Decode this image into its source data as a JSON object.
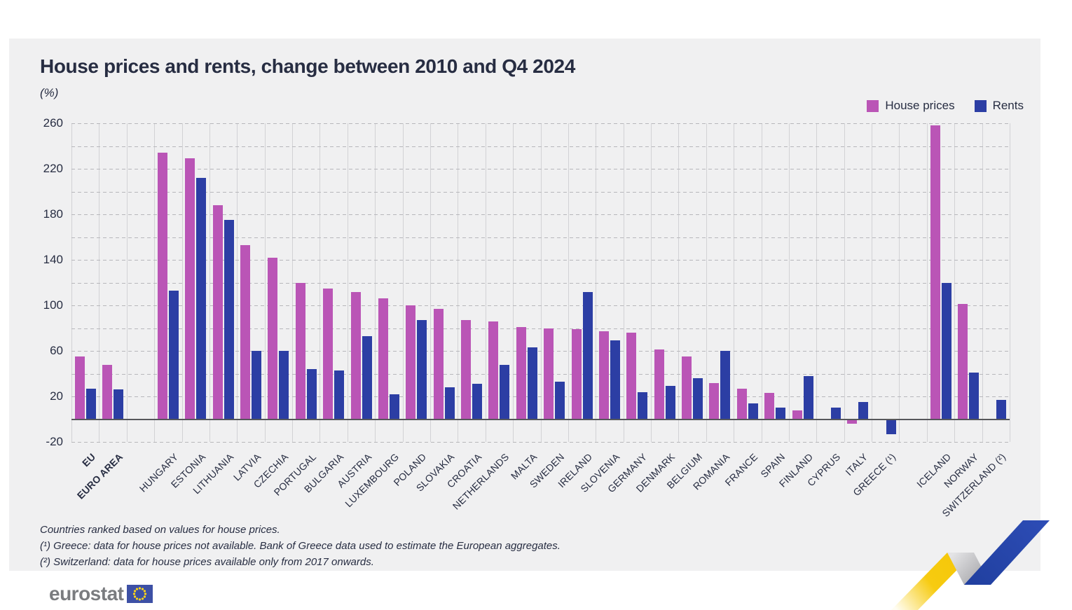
{
  "header": {
    "title": "House prices and rents, change between 2010 and Q4 2024",
    "unit_label": "(%)"
  },
  "chart_data": {
    "type": "bar",
    "title": "House prices and rents, change between 2010 and Q4 2024",
    "unit": "%",
    "legend_position": "top-right",
    "grid": "dashed horizontal every 20, solid vertical per category",
    "series": [
      {
        "name": "House prices",
        "color": "#ba55b6"
      },
      {
        "name": "Rents",
        "color": "#2c3ea4"
      }
    ],
    "y_axis": {
      "min": -20,
      "max": 260,
      "grid_step": 20,
      "labeled_ticks": [
        260,
        220,
        180,
        140,
        100,
        60,
        20,
        -20
      ]
    },
    "items": [
      {
        "label": "EU",
        "group": "aggregates",
        "bold": true,
        "house_prices": 55,
        "rents": 27
      },
      {
        "label": "EURO AREA",
        "group": "aggregates",
        "bold": true,
        "house_prices": 48,
        "rents": 26
      },
      {
        "label": "HUNGARY",
        "group": "eu_members",
        "bold": false,
        "house_prices": 234,
        "rents": 113
      },
      {
        "label": "ESTONIA",
        "group": "eu_members",
        "bold": false,
        "house_prices": 229,
        "rents": 212
      },
      {
        "label": "LITHUANIA",
        "group": "eu_members",
        "bold": false,
        "house_prices": 188,
        "rents": 175
      },
      {
        "label": "LATVIA",
        "group": "eu_members",
        "bold": false,
        "house_prices": 153,
        "rents": 60
      },
      {
        "label": "CZECHIA",
        "group": "eu_members",
        "bold": false,
        "house_prices": 142,
        "rents": 60
      },
      {
        "label": "PORTUGAL",
        "group": "eu_members",
        "bold": false,
        "house_prices": 120,
        "rents": 44
      },
      {
        "label": "BULGARIA",
        "group": "eu_members",
        "bold": false,
        "house_prices": 115,
        "rents": 43
      },
      {
        "label": "AUSTRIA",
        "group": "eu_members",
        "bold": false,
        "house_prices": 112,
        "rents": 73
      },
      {
        "label": "LUXEMBOURG",
        "group": "eu_members",
        "bold": false,
        "house_prices": 106,
        "rents": 22
      },
      {
        "label": "POLAND",
        "group": "eu_members",
        "bold": false,
        "house_prices": 100,
        "rents": 87
      },
      {
        "label": "SLOVAKIA",
        "group": "eu_members",
        "bold": false,
        "house_prices": 97,
        "rents": 28
      },
      {
        "label": "CROATIA",
        "group": "eu_members",
        "bold": false,
        "house_prices": 87,
        "rents": 31
      },
      {
        "label": "NETHERLANDS",
        "group": "eu_members",
        "bold": false,
        "house_prices": 86,
        "rents": 48
      },
      {
        "label": "MALTA",
        "group": "eu_members",
        "bold": false,
        "house_prices": 81,
        "rents": 63
      },
      {
        "label": "SWEDEN",
        "group": "eu_members",
        "bold": false,
        "house_prices": 80,
        "rents": 33
      },
      {
        "label": "IRELAND",
        "group": "eu_members",
        "bold": false,
        "house_prices": 79,
        "rents": 112
      },
      {
        "label": "SLOVENIA",
        "group": "eu_members",
        "bold": false,
        "house_prices": 77,
        "rents": 69
      },
      {
        "label": "GERMANY",
        "group": "eu_members",
        "bold": false,
        "house_prices": 76,
        "rents": 24
      },
      {
        "label": "DENMARK",
        "group": "eu_members",
        "bold": false,
        "house_prices": 61,
        "rents": 29
      },
      {
        "label": "BELGIUM",
        "group": "eu_members",
        "bold": false,
        "house_prices": 55,
        "rents": 36
      },
      {
        "label": "ROMANIA",
        "group": "eu_members",
        "bold": false,
        "house_prices": 32,
        "rents": 60
      },
      {
        "label": "FRANCE",
        "group": "eu_members",
        "bold": false,
        "house_prices": 27,
        "rents": 14
      },
      {
        "label": "SPAIN",
        "group": "eu_members",
        "bold": false,
        "house_prices": 23,
        "rents": 10
      },
      {
        "label": "FINLAND",
        "group": "eu_members",
        "bold": false,
        "house_prices": 8,
        "rents": 38
      },
      {
        "label": "CYPRUS",
        "group": "eu_members",
        "bold": false,
        "house_prices": 0,
        "rents": 10
      },
      {
        "label": "ITALY",
        "group": "eu_members",
        "bold": false,
        "house_prices": -4,
        "rents": 15
      },
      {
        "label": "GREECE (¹)",
        "group": "eu_members",
        "bold": false,
        "house_prices": null,
        "rents": -13
      },
      {
        "label": "ICELAND",
        "group": "non_eu",
        "bold": false,
        "house_prices": 258,
        "rents": 120
      },
      {
        "label": "NORWAY",
        "group": "non_eu",
        "bold": false,
        "house_prices": 101,
        "rents": 41
      },
      {
        "label": "SWITZERLAND (²)",
        "group": "non_eu",
        "bold": false,
        "house_prices": null,
        "rents": 17
      }
    ]
  },
  "footnotes": [
    "Countries ranked based on values for house prices.",
    "(¹) Greece: data for house prices not available. Bank of Greece data used to estimate the European aggregates.",
    "(²) Switzerland: data for house prices available only from 2017 onwards."
  ],
  "logo": {
    "text": "eurostat"
  }
}
